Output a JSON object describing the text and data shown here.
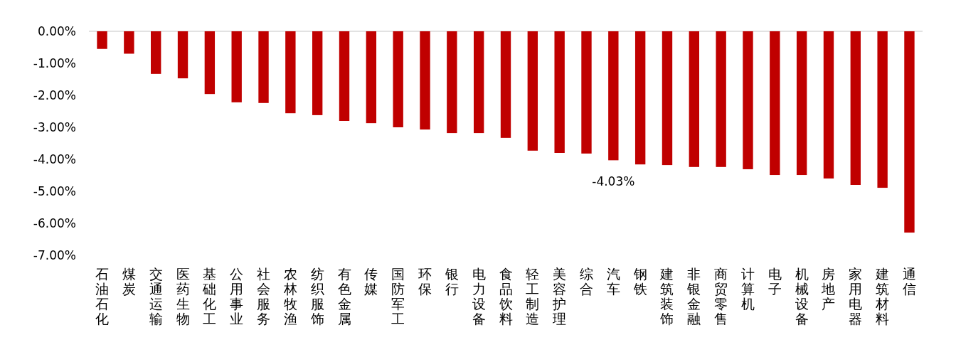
{
  "chart_data": {
    "type": "bar",
    "categories": [
      "石油石化",
      "煤炭",
      "交通运输",
      "医药生物",
      "基础化工",
      "公用事业",
      "社会服务",
      "农林牧渔",
      "纺织服饰",
      "有色金属",
      "传媒",
      "国防军工",
      "环保",
      "银行",
      "电力设备",
      "食品饮料",
      "轻工制造",
      "美容护理",
      "综合",
      "汽车",
      "钢铁",
      "建筑装饰",
      "非银金融",
      "商贸零售",
      "计算机",
      "电子",
      "机械设备",
      "房地产",
      "家用电器",
      "建筑材料",
      "通信"
    ],
    "values": [
      -0.55,
      -0.7,
      -1.33,
      -1.47,
      -1.96,
      -2.22,
      -2.24,
      -2.56,
      -2.62,
      -2.8,
      -2.87,
      -3.0,
      -3.07,
      -3.18,
      -3.18,
      -3.33,
      -3.73,
      -3.8,
      -3.82,
      -4.03,
      -4.16,
      -4.18,
      -4.24,
      -4.24,
      -4.31,
      -4.49,
      -4.49,
      -4.6,
      -4.8,
      -4.89,
      -6.29
    ],
    "value_labels": [
      null,
      null,
      null,
      null,
      null,
      null,
      null,
      null,
      null,
      null,
      null,
      null,
      null,
      null,
      null,
      null,
      null,
      null,
      null,
      "-4.03%",
      null,
      null,
      null,
      null,
      null,
      null,
      null,
      null,
      null,
      null,
      null
    ],
    "color": "#c00000",
    "ylim": [
      -7,
      0
    ],
    "yticks": [
      {
        "value": 0,
        "label": "0.00%"
      },
      {
        "value": -1,
        "label": "-1.00%"
      },
      {
        "value": -2,
        "label": "-2.00%"
      },
      {
        "value": -3,
        "label": "-3.00%"
      },
      {
        "value": -4,
        "label": "-4.00%"
      },
      {
        "value": -5,
        "label": "-5.00%"
      },
      {
        "value": -6,
        "label": "-6.00%"
      },
      {
        "value": -7,
        "label": "-7.00%"
      }
    ]
  }
}
